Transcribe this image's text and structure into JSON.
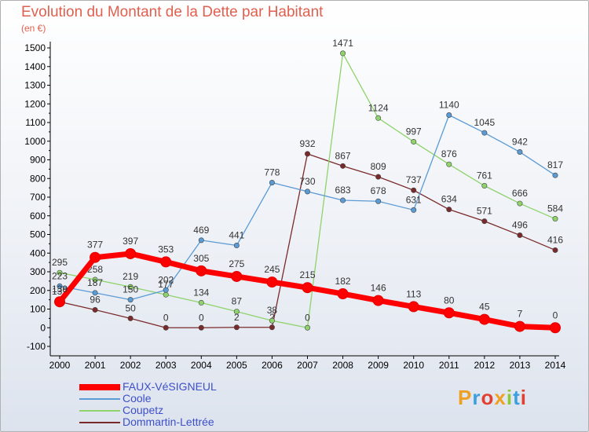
{
  "title": "Evolution du Montant de la Dette par Habitant",
  "subtitle": "(en €)",
  "brand": "Proxiti",
  "chart_data": {
    "type": "line",
    "title": "Evolution du Montant de la Dette par Habitant",
    "subtitle": "(en €)",
    "xlabel": "",
    "ylabel": "",
    "x": [
      2000,
      2001,
      2002,
      2003,
      2004,
      2005,
      2006,
      2007,
      2008,
      2009,
      2010,
      2011,
      2012,
      2013,
      2014
    ],
    "ylim": [
      -100,
      1500
    ],
    "yticks": [
      -100,
      0,
      100,
      200,
      300,
      400,
      500,
      600,
      700,
      800,
      900,
      1000,
      1100,
      1200,
      1300,
      1400,
      1500
    ],
    "grid": false,
    "legend": "bottom-left",
    "series": [
      {
        "name": "FAUX-VéSIGNEUL",
        "color": "#ff0000",
        "values": [
          139,
          377,
          397,
          353,
          305,
          275,
          245,
          215,
          182,
          146,
          113,
          80,
          45,
          7,
          0
        ]
      },
      {
        "name": "Coole",
        "color": "#5b9bd5",
        "values": [
          223,
          187,
          150,
          202,
          469,
          441,
          778,
          730,
          683,
          678,
          631,
          1140,
          1045,
          942,
          817
        ]
      },
      {
        "name": "Coupetz",
        "color": "#8ed36b",
        "values": [
          295,
          258,
          219,
          177,
          134,
          87,
          38,
          0,
          1471,
          1124,
          997,
          876,
          761,
          666,
          584
        ]
      },
      {
        "name": "Dommartin-Lettrée",
        "color": "#7a2a2a",
        "values": [
          139,
          96,
          50,
          0,
          0,
          2,
          2,
          932,
          867,
          809,
          737,
          634,
          571,
          496,
          416
        ]
      }
    ]
  },
  "brand_colors": [
    "#f0a020",
    "#3aa0e0",
    "#e04030",
    "#f0a020",
    "#8cc83c",
    "#3aa0e0",
    "#e04030"
  ]
}
